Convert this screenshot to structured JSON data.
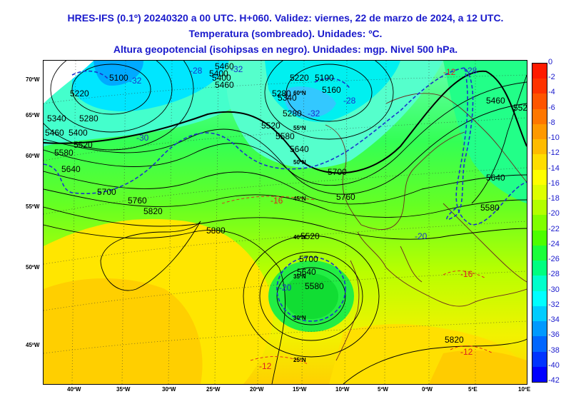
{
  "header": {
    "line1": "HRES-IFS (0.1º) 20240320 a 00 UTC. H+060. Validez: viernes, 22 de marzo de 2024, a 12 UTC.",
    "line2": "Temperatura (sombreado). Unidades: ºC.",
    "line3": "Altura geopotencial (isohipsas en negro). Unidades: mgp. Nivel 500 hPa."
  },
  "x_axis_labels": [
    "40ºW",
    "35ºW",
    "30ºW",
    "25ºW",
    "20ºW",
    "15ºW",
    "10ºW",
    "5ºW",
    "0ºW",
    "5ºE",
    "10ºE"
  ],
  "y_axis_labels": [
    "70ºW",
    "65ºW",
    "60ºW",
    "55ºW",
    "50ºW",
    "45ºW"
  ],
  "inner_lat_labels": [
    "60ºN",
    "55ºN",
    "50ºN",
    "45ºN",
    "40ºN",
    "35ºN",
    "30ºN",
    "25ºN"
  ],
  "colorbar": {
    "labels": [
      "0",
      "-2",
      "-4",
      "-6",
      "-8",
      "-10",
      "-12",
      "-14",
      "-16",
      "-18",
      "-20",
      "-22",
      "-24",
      "-26",
      "-28",
      "-30",
      "-32",
      "-34",
      "-36",
      "-38",
      "-40",
      "-42"
    ],
    "colors": [
      "#ff1a00",
      "#ff3300",
      "#ff5500",
      "#ff7700",
      "#ff9900",
      "#ffbb00",
      "#ffdd00",
      "#ffff00",
      "#ddff00",
      "#b3ff00",
      "#80ff00",
      "#4dff00",
      "#1aff3a",
      "#00ff80",
      "#00ffcc",
      "#00ffff",
      "#00ccff",
      "#0099ff",
      "#0066ff",
      "#0033ff",
      "#0000ff"
    ]
  },
  "map_labels": {
    "geopotential": [
      "5100",
      "5220",
      "5280",
      "5340",
      "5400",
      "5460",
      "5520",
      "5580",
      "5640",
      "5700",
      "5760",
      "5820",
      "5880",
      "5400",
      "5460",
      "5520",
      "5580",
      "5640",
      "5700",
      "5760",
      "5820",
      "5100",
      "5160",
      "5220",
      "5280",
      "5700",
      "5640",
      "5580",
      "5520",
      "5460",
      "5640",
      "5580",
      "5520",
      "5460",
      "5400",
      "5340",
      "5280"
    ],
    "temperature": [
      "-28",
      "-32",
      "-32",
      "-28",
      "-32",
      "-30",
      "-16",
      "-20",
      "-16",
      "-12",
      "-12",
      "-12",
      "-28",
      "-20"
    ]
  }
}
